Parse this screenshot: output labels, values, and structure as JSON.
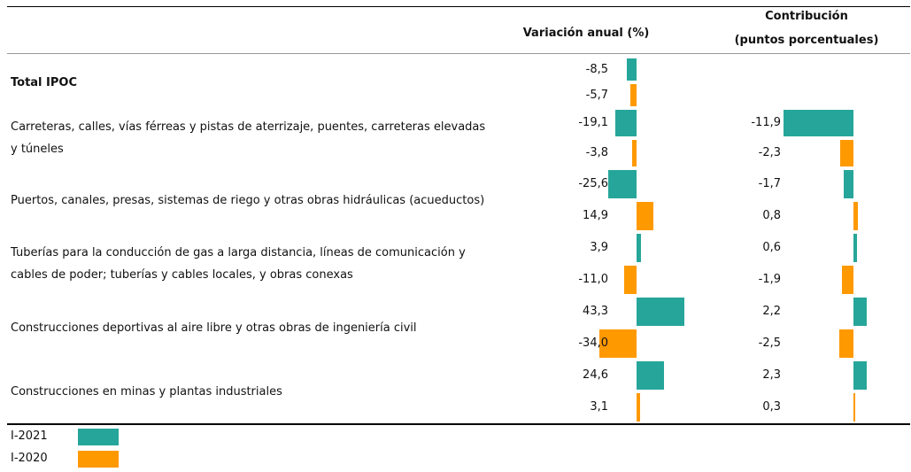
{
  "chart_data": {
    "type": "bar",
    "value_title": "Variación anual (%)",
    "contribution_title": [
      "Contribución",
      "(puntos porcentuales)"
    ],
    "categories": [
      "Total IPOC",
      "Carreteras, calles, vías férreas y pistas de aterrizaje, puentes, carreteras elevadas y túneles",
      "Puertos, canales, presas, sistemas de riego y otras obras hidráulicas (acueductos)",
      "Tuberías para la conducción de gas a larga distancia, líneas de comunicación y cables de poder; tuberías y cables locales, y obras conexas",
      "Construcciones deportivas al aire libre y otras obras de ingeniería civil",
      "Construcciones  en minas y plantas industriales"
    ],
    "series": [
      {
        "name": "I-2021",
        "color": "#26a69a",
        "values": [
          -8.5,
          -19.1,
          -25.6,
          3.9,
          43.3,
          24.6
        ],
        "value_labels": [
          "-8,5",
          "-19,1",
          "-25,6",
          "3,9",
          "43,3",
          "24,6"
        ],
        "contribution": [
          null,
          -11.9,
          -1.7,
          0.6,
          2.2,
          2.3
        ],
        "contribution_labels": [
          null,
          "-11,9",
          "-1,7",
          "0,6",
          "2,2",
          "2,3"
        ]
      },
      {
        "name": "I-2020",
        "color": "#ff9900",
        "values": [
          -5.7,
          -3.8,
          14.9,
          -11.0,
          -34.0,
          3.1
        ],
        "value_labels": [
          "-5,7",
          "-3,8",
          "14,9",
          "-11,0",
          "-34,0",
          "3,1"
        ],
        "contribution": [
          null,
          -2.3,
          0.8,
          -1.9,
          -2.5,
          0.3
        ],
        "contribution_labels": [
          null,
          "-2,3",
          "0,8",
          "-1,9",
          "-2,5",
          "0,3"
        ]
      }
    ]
  }
}
